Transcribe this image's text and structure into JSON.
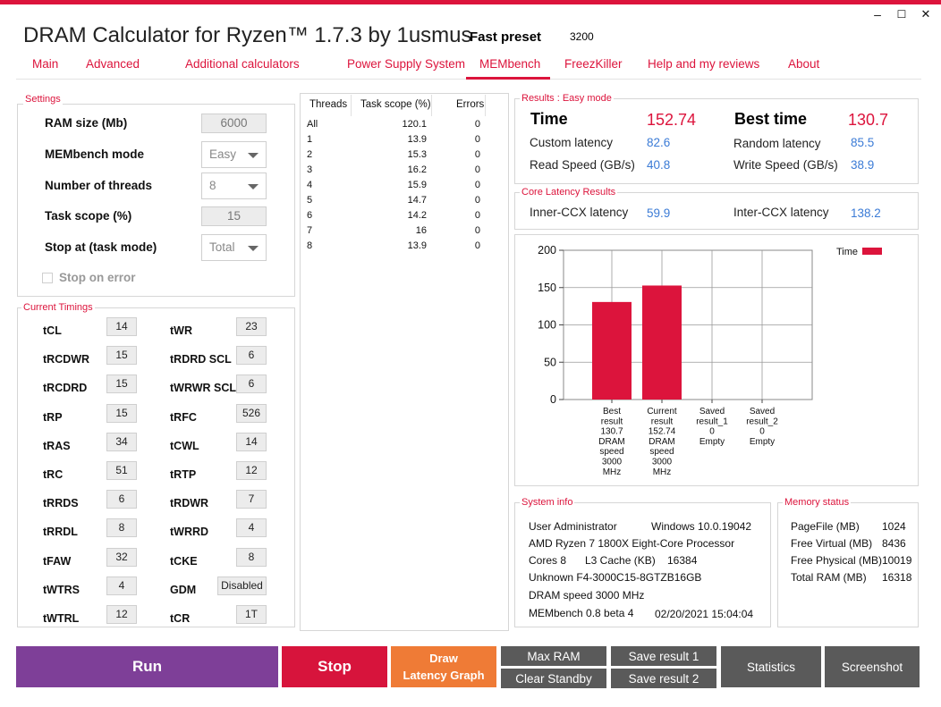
{
  "app": {
    "title": "DRAM Calculator for Ryzen™ 1.7.3 by 1usmus",
    "preset_label": "Fast preset",
    "preset_value": "3200"
  },
  "window_controls": {
    "minimize": "–",
    "maximize": "☐",
    "close": "✕"
  },
  "tabs": [
    "Main",
    "Advanced",
    "Additional calculators",
    "Power Supply System",
    "MEMbench",
    "FreezKiller",
    "Help and my reviews",
    "About"
  ],
  "settings": {
    "group_label": "Settings",
    "ram_size_label": "RAM size (Mb)",
    "ram_size_value": "6000",
    "mode_label": "MEMbench mode",
    "mode_value": "Easy",
    "threads_label": "Number of threads",
    "threads_value": "8",
    "scope_label": "Task scope (%)",
    "scope_value": "15",
    "stop_label": "Stop at (task mode)",
    "stop_value": "Total",
    "stop_on_error_label": "Stop on error"
  },
  "timings": {
    "group_label": "Current Timings",
    "left": [
      {
        "label": "tCL",
        "value": "14"
      },
      {
        "label": "tRCDWR",
        "value": "15"
      },
      {
        "label": "tRCDRD",
        "value": "15"
      },
      {
        "label": "tRP",
        "value": "15"
      },
      {
        "label": "tRAS",
        "value": "34"
      },
      {
        "label": "tRC",
        "value": "51"
      },
      {
        "label": "tRRDS",
        "value": "6"
      },
      {
        "label": "tRRDL",
        "value": "8"
      },
      {
        "label": "tFAW",
        "value": "32"
      },
      {
        "label": "tWTRS",
        "value": "4"
      },
      {
        "label": "tWTRL",
        "value": "12"
      }
    ],
    "right": [
      {
        "label": "tWR",
        "value": "23"
      },
      {
        "label": "tRDRD SCL",
        "value": "6"
      },
      {
        "label": "tWRWR SCL",
        "value": "6"
      },
      {
        "label": "tRFC",
        "value": "526"
      },
      {
        "label": "tCWL",
        "value": "14"
      },
      {
        "label": "tRTP",
        "value": "12"
      },
      {
        "label": "tRDWR",
        "value": "7"
      },
      {
        "label": "tWRRD",
        "value": "4"
      },
      {
        "label": "tCKE",
        "value": "8"
      },
      {
        "label": "GDM",
        "value": "Disabled"
      },
      {
        "label": "tCR",
        "value": "1T"
      }
    ]
  },
  "threads_table": {
    "headers": [
      "Threads",
      "Task scope (%)",
      "Errors"
    ],
    "rows": [
      [
        "All",
        "120.1",
        "0"
      ],
      [
        "1",
        "13.9",
        "0"
      ],
      [
        "2",
        "15.3",
        "0"
      ],
      [
        "3",
        "16.2",
        "0"
      ],
      [
        "4",
        "15.9",
        "0"
      ],
      [
        "5",
        "14.7",
        "0"
      ],
      [
        "6",
        "14.2",
        "0"
      ],
      [
        "7",
        "16",
        "0"
      ],
      [
        "8",
        "13.9",
        "0"
      ]
    ]
  },
  "results": {
    "group_label": "Results : Easy mode",
    "time_label": "Time",
    "time_value": "152.74",
    "best_label": "Best time",
    "best_value": "130.7",
    "custom_latency_label": "Custom latency",
    "custom_latency_value": "82.6",
    "random_latency_label": "Random latency",
    "random_latency_value": "85.5",
    "read_label": "Read Speed (GB/s)",
    "read_value": "40.8",
    "write_label": "Write Speed (GB/s)",
    "write_value": "38.9"
  },
  "core_latency": {
    "group_label": "Core Latency Results",
    "inner_label": "Inner-CCX latency",
    "inner_value": "59.9",
    "inter_label": "Inter-CCX latency",
    "inter_value": "138.2"
  },
  "chart_data": {
    "type": "bar",
    "legend": "Time",
    "legend_position": "top-right",
    "color": "#dc143c",
    "ylim": [
      0,
      200
    ],
    "yticks": [
      "0",
      "50",
      "100",
      "150",
      "200"
    ],
    "categories": [
      [
        "Best",
        "result",
        "130.7",
        "DRAM",
        "speed",
        "3000",
        "MHz"
      ],
      [
        "Current",
        "result",
        "152.74",
        "DRAM",
        "speed",
        "3000",
        "MHz"
      ],
      [
        "Saved",
        "result_1",
        "0",
        "Empty"
      ],
      [
        "Saved",
        "result_2",
        "0",
        "Empty"
      ]
    ],
    "values": [
      130.7,
      152.74,
      0,
      0
    ],
    "grid": true
  },
  "system_info": {
    "group_label": "System info",
    "user": "User Administrator",
    "os": "Windows 10.0.19042",
    "cpu": "AMD Ryzen 7 1800X Eight-Core Processor",
    "cores": "Cores 8",
    "l3": "L3 Cache (KB)",
    "l3_value": "16384",
    "ram": "Unknown F4-3000C15-8GTZB16GB",
    "dram_speed": "DRAM speed 3000 MHz",
    "version": "MEMbench 0.8 beta 4",
    "datetime": "02/20/2021 15:04:04"
  },
  "memory_status": {
    "group_label": "Memory status",
    "rows": [
      {
        "label": "PageFile (MB)",
        "value": "1024"
      },
      {
        "label": "Free Virtual (MB)",
        "value": "8436"
      },
      {
        "label": "Free Physical (MB)",
        "value": "10019"
      },
      {
        "label": "Total RAM (MB)",
        "value": "16318"
      }
    ]
  },
  "buttons": {
    "run": "Run",
    "stop": "Stop",
    "draw_line1": "Draw",
    "draw_line2": "Latency Graph",
    "max_ram": "Max RAM",
    "clear_standby": "Clear Standby",
    "save1": "Save result 1",
    "save2": "Save result 2",
    "statistics": "Statistics",
    "screenshot": "Screenshot"
  },
  "colors": {
    "accent": "#dc143c",
    "run": "#7e3f98",
    "stop": "#d7143c",
    "draw": "#ef7b36",
    "gray_btn": "#5a5a5a",
    "value_blue": "#3b7bd6"
  }
}
